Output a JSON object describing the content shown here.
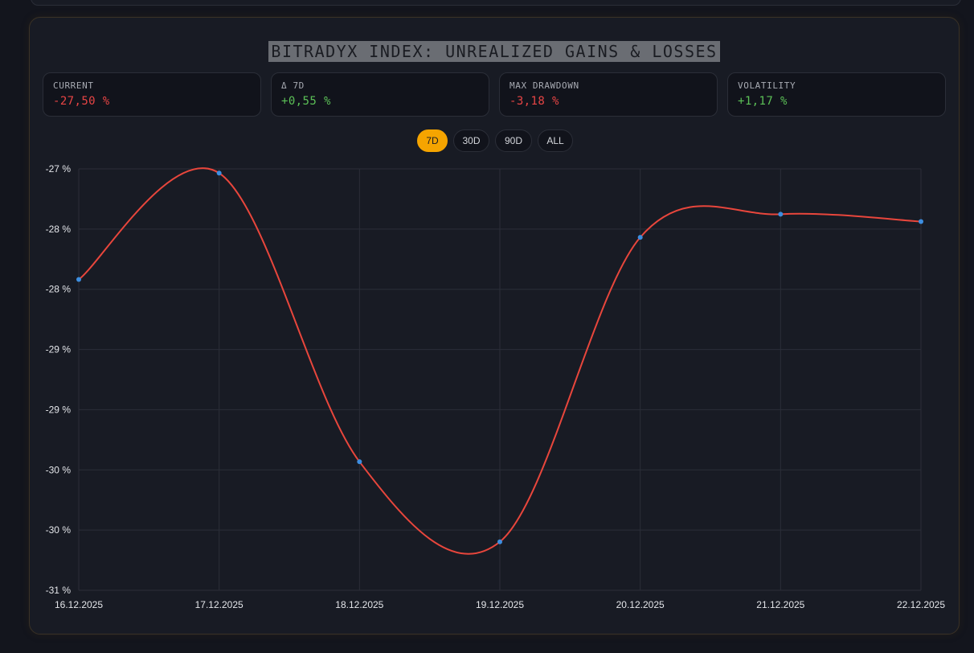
{
  "title": "BITRADYX INDEX: UNREALIZED GAINS & LOSSES",
  "stats": [
    {
      "label": "CURRENT",
      "value": "-27,50 %",
      "tone": "neg"
    },
    {
      "label": "Δ 7D",
      "value": "+0,55 %",
      "tone": "pos"
    },
    {
      "label": "MAX DRAWDOWN",
      "value": "-3,18 %",
      "tone": "neg"
    },
    {
      "label": "VOLATILITY",
      "value": "+1,17 %",
      "tone": "pos"
    }
  ],
  "ranges": [
    "7D",
    "30D",
    "90D",
    "ALL"
  ],
  "active_range": "7D",
  "colors": {
    "line": "#e8463c",
    "point": "#3d8ee0",
    "grid": "#2b2e38",
    "accent": "#f5a400",
    "negative": "#e84545",
    "positive": "#5cc157"
  },
  "chart_data": {
    "type": "line",
    "x": [
      "16.12.2025",
      "17.12.2025",
      "18.12.2025",
      "19.12.2025",
      "20.12.2025",
      "21.12.2025",
      "22.12.2025"
    ],
    "series": [
      {
        "values": [
          -28.05,
          -27.04,
          -29.78,
          -30.54,
          -27.65,
          -27.43,
          -27.5
        ]
      }
    ],
    "yticks": [
      "-27 %",
      "-28 %",
      "-28 %",
      "-29 %",
      "-29 %",
      "-30 %",
      "-30 %",
      "-31 %"
    ],
    "ylim": [
      -31.0,
      -27.0
    ],
    "grid": true
  }
}
